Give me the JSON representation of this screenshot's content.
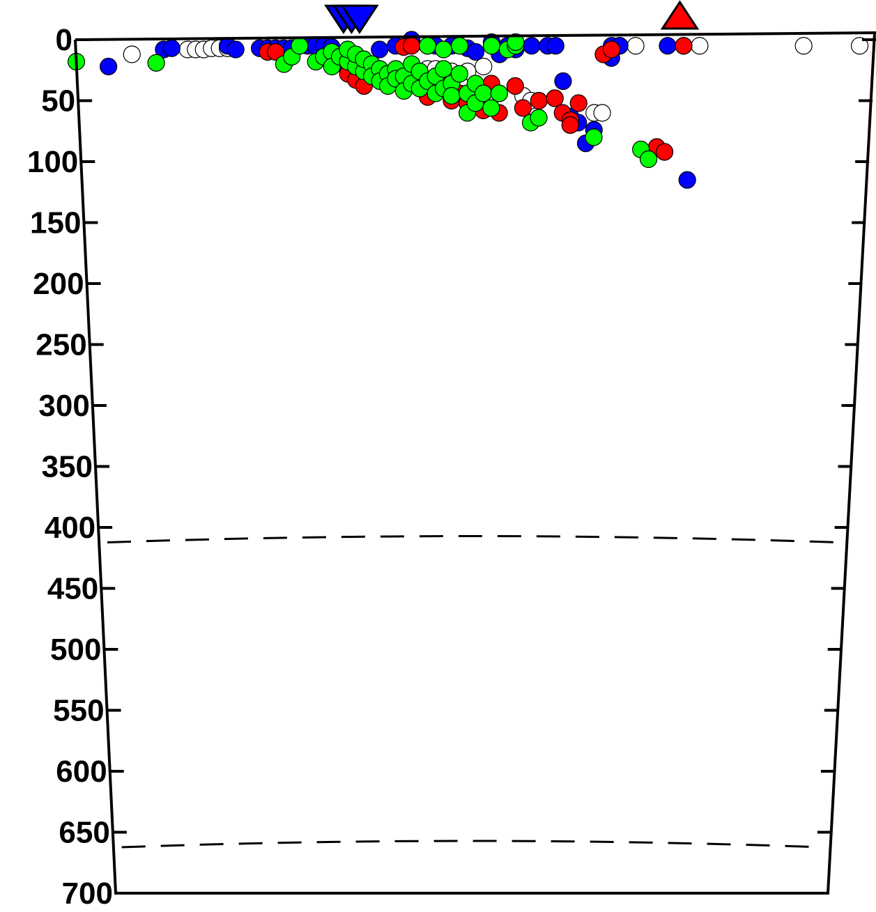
{
  "colors": {
    "blue": "#0000ff",
    "red": "#ff0000",
    "green": "#00ff00",
    "open": "#ffffff",
    "outline": "#000000"
  },
  "chart_data": {
    "type": "scatter",
    "title": "",
    "xlabel": "",
    "ylabel": "",
    "xlim": [
      0,
      100
    ],
    "ylim": [
      0,
      700
    ],
    "y_inverted": true,
    "y_ticks": [
      0,
      50,
      100,
      150,
      200,
      250,
      300,
      350,
      400,
      450,
      500,
      550,
      600,
      650,
      700
    ],
    "x_ticks_shown": false,
    "discontinuities": [
      410,
      660
    ],
    "markers": [
      {
        "shape": "inverted-triangle",
        "color": "blue",
        "x": 33.5,
        "depth": -17
      },
      {
        "shape": "inverted-triangle",
        "color": "blue",
        "x": 34.5,
        "depth": -17
      },
      {
        "shape": "inverted-triangle",
        "color": "blue",
        "x": 35.5,
        "depth": -17
      },
      {
        "shape": "triangle",
        "color": "red",
        "x": 75.5,
        "depth": -20
      }
    ],
    "series": [
      {
        "color": "blue",
        "points": [
          [
            4,
            22
          ],
          [
            11,
            8
          ],
          [
            12,
            7
          ],
          [
            19,
            5
          ],
          [
            20,
            8
          ],
          [
            23,
            7
          ],
          [
            24,
            7
          ],
          [
            25,
            7
          ],
          [
            26,
            7
          ],
          [
            27,
            7
          ],
          [
            28,
            5
          ],
          [
            29,
            5
          ],
          [
            30,
            5
          ],
          [
            31,
            5
          ],
          [
            32,
            6
          ],
          [
            34,
            26
          ],
          [
            38,
            8
          ],
          [
            40,
            5
          ],
          [
            42,
            0
          ],
          [
            44,
            5
          ],
          [
            45,
            5
          ],
          [
            47,
            5
          ],
          [
            49,
            7
          ],
          [
            50,
            10
          ],
          [
            52,
            2
          ],
          [
            53,
            12
          ],
          [
            54,
            5
          ],
          [
            55,
            8
          ],
          [
            57,
            5
          ],
          [
            59,
            5
          ],
          [
            60,
            5
          ],
          [
            60,
            48
          ],
          [
            61,
            34
          ],
          [
            62,
            63
          ],
          [
            63,
            68
          ],
          [
            64,
            85
          ],
          [
            65,
            74
          ],
          [
            67,
            5
          ],
          [
            67,
            15
          ],
          [
            68,
            5
          ],
          [
            74,
            5
          ],
          [
            76,
            5
          ],
          [
            77,
            115
          ]
        ]
      },
      {
        "color": "red",
        "points": [
          [
            24,
            10
          ],
          [
            25,
            10
          ],
          [
            34,
            28
          ],
          [
            35,
            33
          ],
          [
            36,
            38
          ],
          [
            38,
            30
          ],
          [
            39,
            35
          ],
          [
            40,
            30
          ],
          [
            41,
            6
          ],
          [
            42,
            5
          ],
          [
            43,
            40
          ],
          [
            44,
            47
          ],
          [
            46,
            35
          ],
          [
            47,
            50
          ],
          [
            48,
            44
          ],
          [
            49,
            52
          ],
          [
            50,
            55
          ],
          [
            51,
            58
          ],
          [
            52,
            36
          ],
          [
            53,
            60
          ],
          [
            55,
            38
          ],
          [
            56,
            56
          ],
          [
            58,
            50
          ],
          [
            60,
            48
          ],
          [
            61,
            60
          ],
          [
            62,
            66
          ],
          [
            62,
            70
          ],
          [
            63,
            52
          ],
          [
            66,
            12
          ],
          [
            67,
            8
          ],
          [
            73,
            88
          ],
          [
            74,
            92
          ],
          [
            76,
            5
          ]
        ]
      },
      {
        "color": "green",
        "points": [
          [
            0,
            18
          ],
          [
            10,
            19
          ],
          [
            26,
            20
          ],
          [
            27,
            14
          ],
          [
            28,
            5
          ],
          [
            30,
            18
          ],
          [
            31,
            14
          ],
          [
            32,
            10
          ],
          [
            32,
            22
          ],
          [
            33,
            14
          ],
          [
            34,
            18
          ],
          [
            34,
            8
          ],
          [
            35,
            22
          ],
          [
            35,
            12
          ],
          [
            36,
            26
          ],
          [
            36,
            16
          ],
          [
            37,
            20
          ],
          [
            37,
            30
          ],
          [
            38,
            24
          ],
          [
            38,
            34
          ],
          [
            39,
            28
          ],
          [
            39,
            38
          ],
          [
            40,
            24
          ],
          [
            40,
            32
          ],
          [
            41,
            30
          ],
          [
            41,
            42
          ],
          [
            42,
            20
          ],
          [
            42,
            36
          ],
          [
            43,
            26
          ],
          [
            43,
            40
          ],
          [
            44,
            5
          ],
          [
            44,
            34
          ],
          [
            45,
            30
          ],
          [
            45,
            44
          ],
          [
            46,
            8
          ],
          [
            46,
            24
          ],
          [
            46,
            40
          ],
          [
            47,
            36
          ],
          [
            47,
            46
          ],
          [
            48,
            5
          ],
          [
            48,
            28
          ],
          [
            49,
            44
          ],
          [
            49,
            60
          ],
          [
            50,
            36
          ],
          [
            50,
            52
          ],
          [
            51,
            44
          ],
          [
            52,
            5
          ],
          [
            52,
            56
          ],
          [
            53,
            44
          ],
          [
            54,
            8
          ],
          [
            55,
            5
          ],
          [
            55,
            2
          ],
          [
            57,
            68
          ],
          [
            58,
            64
          ],
          [
            65,
            80
          ],
          [
            71,
            90
          ],
          [
            72,
            98
          ]
        ]
      },
      {
        "color": "open",
        "points": [
          [
            7,
            12
          ],
          [
            14,
            8
          ],
          [
            15,
            8
          ],
          [
            16,
            8
          ],
          [
            17,
            7
          ],
          [
            18,
            7
          ],
          [
            19,
            7
          ],
          [
            44,
            24
          ],
          [
            45,
            24
          ],
          [
            47,
            26
          ],
          [
            49,
            26
          ],
          [
            51,
            22
          ],
          [
            56,
            46
          ],
          [
            57,
            50
          ],
          [
            62,
            70
          ],
          [
            65,
            60
          ],
          [
            66,
            60
          ],
          [
            68,
            5
          ],
          [
            70,
            5
          ],
          [
            74,
            92
          ],
          [
            78,
            5
          ],
          [
            91,
            5
          ],
          [
            98,
            5
          ]
        ]
      }
    ]
  }
}
